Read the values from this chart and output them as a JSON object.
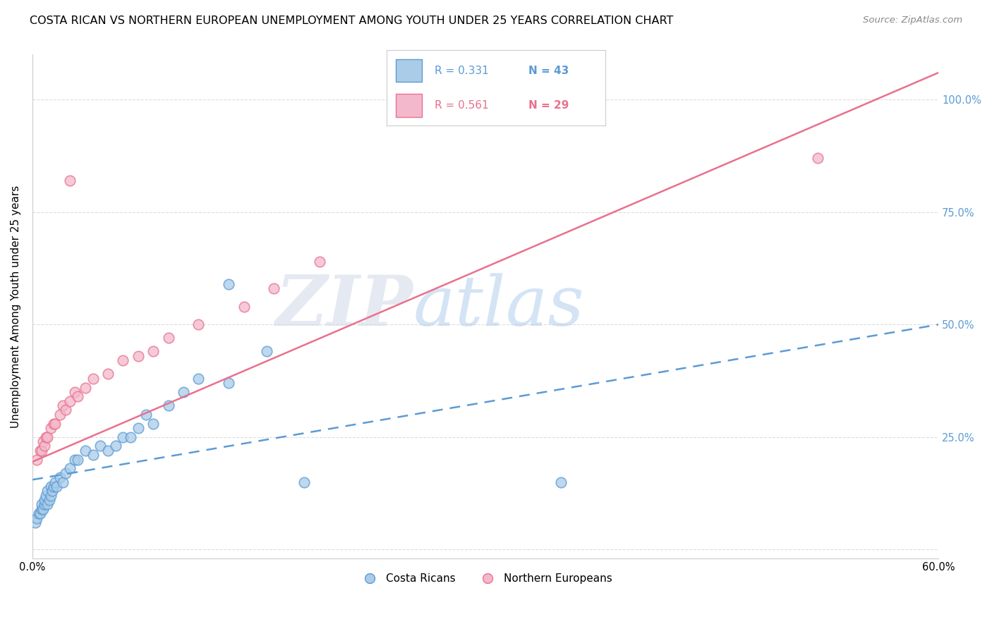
{
  "title": "COSTA RICAN VS NORTHERN EUROPEAN UNEMPLOYMENT AMONG YOUTH UNDER 25 YEARS CORRELATION CHART",
  "source": "Source: ZipAtlas.com",
  "ylabel": "Unemployment Among Youth under 25 years",
  "xlim": [
    0.0,
    0.6
  ],
  "ylim": [
    -0.02,
    1.1
  ],
  "xticks": [
    0.0,
    0.1,
    0.2,
    0.3,
    0.4,
    0.5,
    0.6
  ],
  "xticklabels": [
    "0.0%",
    "",
    "",
    "",
    "",
    "",
    "60.0%"
  ],
  "ytick_positions": [
    0.0,
    0.25,
    0.5,
    0.75,
    1.0
  ],
  "yticklabels_right": [
    "",
    "25.0%",
    "50.0%",
    "75.0%",
    "100.0%"
  ],
  "legend_r1": "R = 0.331",
  "legend_n1": "N = 43",
  "legend_r2": "R = 0.561",
  "legend_n2": "N = 29",
  "color_blue_fill": "#aacce8",
  "color_pink_fill": "#f4b8cc",
  "color_blue_edge": "#5b9bd5",
  "color_pink_edge": "#e8718d",
  "color_line_blue": "#5b9bd5",
  "color_line_pink": "#e8718d",
  "color_right_ticks": "#5b9bd5",
  "blue_scatter_x": [
    0.002,
    0.003,
    0.004,
    0.005,
    0.006,
    0.006,
    0.007,
    0.008,
    0.008,
    0.009,
    0.01,
    0.01,
    0.011,
    0.012,
    0.012,
    0.013,
    0.014,
    0.015,
    0.016,
    0.018,
    0.02,
    0.022,
    0.025,
    0.028,
    0.03,
    0.035,
    0.04,
    0.045,
    0.05,
    0.055,
    0.06,
    0.065,
    0.07,
    0.075,
    0.08,
    0.09,
    0.1,
    0.11,
    0.13,
    0.155,
    0.18,
    0.35,
    0.13
  ],
  "blue_scatter_y": [
    0.06,
    0.07,
    0.08,
    0.08,
    0.09,
    0.1,
    0.09,
    0.1,
    0.11,
    0.12,
    0.1,
    0.13,
    0.11,
    0.12,
    0.14,
    0.13,
    0.14,
    0.15,
    0.14,
    0.16,
    0.15,
    0.17,
    0.18,
    0.2,
    0.2,
    0.22,
    0.21,
    0.23,
    0.22,
    0.23,
    0.25,
    0.25,
    0.27,
    0.3,
    0.28,
    0.32,
    0.35,
    0.38,
    0.37,
    0.44,
    0.15,
    0.15,
    0.59
  ],
  "pink_scatter_x": [
    0.003,
    0.005,
    0.006,
    0.007,
    0.008,
    0.009,
    0.01,
    0.012,
    0.014,
    0.015,
    0.018,
    0.02,
    0.022,
    0.025,
    0.028,
    0.03,
    0.035,
    0.04,
    0.05,
    0.06,
    0.07,
    0.08,
    0.09,
    0.11,
    0.14,
    0.16,
    0.19,
    0.52,
    0.025
  ],
  "pink_scatter_y": [
    0.2,
    0.22,
    0.22,
    0.24,
    0.23,
    0.25,
    0.25,
    0.27,
    0.28,
    0.28,
    0.3,
    0.32,
    0.31,
    0.33,
    0.35,
    0.34,
    0.36,
    0.38,
    0.39,
    0.42,
    0.43,
    0.44,
    0.47,
    0.5,
    0.54,
    0.58,
    0.64,
    0.87,
    0.82
  ],
  "blue_line_x0": 0.0,
  "blue_line_x1": 0.6,
  "blue_line_y0": 0.155,
  "blue_line_y1": 0.5,
  "pink_line_x0": 0.0,
  "pink_line_x1": 0.6,
  "pink_line_y0": 0.195,
  "pink_line_y1": 1.06,
  "watermark_zip": "ZIP",
  "watermark_atlas": "atlas",
  "legend_label1": "Costa Ricans",
  "legend_label2": "Northern Europeans",
  "title_fontsize": 11.5,
  "axis_label_fontsize": 11,
  "tick_fontsize": 10.5,
  "source_fontsize": 9.5
}
